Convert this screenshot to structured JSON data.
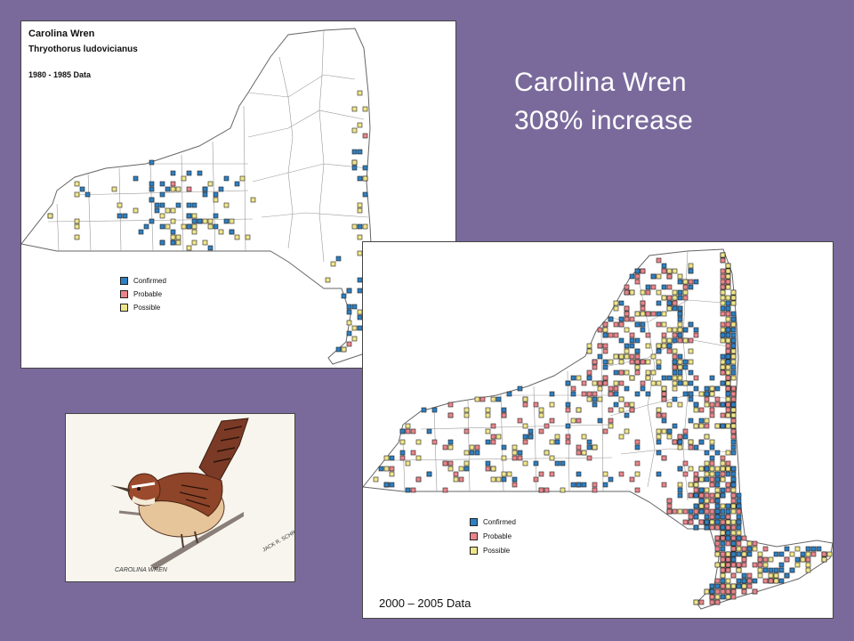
{
  "headline": {
    "species": "Carolina Wren",
    "change": "308% increase"
  },
  "map_1980": {
    "title": "Carolina Wren",
    "scientific_name": "Thryothorus ludovicianus",
    "period": "1980 - 1985 Data",
    "legend": [
      {
        "label": "Confirmed",
        "color": "#2f7fc1"
      },
      {
        "label": "Probable",
        "color": "#e8848a"
      },
      {
        "label": "Possible",
        "color": "#efe58a"
      }
    ]
  },
  "map_2000": {
    "period": "2000 – 2005 Data",
    "legend": [
      {
        "label": "Confirmed",
        "color": "#2f7fc1"
      },
      {
        "label": "Probable",
        "color": "#e8848a"
      },
      {
        "label": "Possible",
        "color": "#efe58a"
      }
    ]
  },
  "illustration": {
    "caption": "CAROLINA WREN",
    "signature": "JACK R. SCHREIBER"
  }
}
